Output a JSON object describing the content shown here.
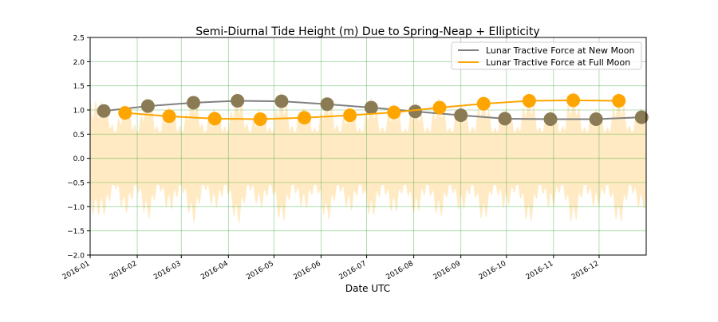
{
  "chart_data": {
    "type": "line",
    "title": "Semi-Diurnal Tide Height (m) Due to Spring-Neap + Ellipticity",
    "xlabel": "Date UTC",
    "ylabel": "",
    "ylim": [
      -2.0,
      2.5
    ],
    "xlim": [
      "2016-01-01",
      "2016-12-31"
    ],
    "grid": true,
    "grid_color": "#2ca02c",
    "legend_position": "top-right",
    "y_ticks": [
      "−2.0",
      "−1.5",
      "−1.0",
      "−0.5",
      "0.0",
      "0.5",
      "1.0",
      "1.5",
      "2.0",
      "2.5"
    ],
    "y_tick_values": [
      -2.0,
      -1.5,
      -1.0,
      -0.5,
      0.0,
      0.5,
      1.0,
      1.5,
      2.0,
      2.5
    ],
    "x_ticks": [
      "2016-01",
      "2016-02",
      "2016-03",
      "2016-04",
      "2016-05",
      "2016-06",
      "2016-07",
      "2016-08",
      "2016-09",
      "2016-10",
      "2016-11",
      "2016-12"
    ],
    "tide_fill_color": "#ffd27f",
    "series": [
      {
        "name": "Lunar Tractive Force at New Moon",
        "color": "#808080",
        "marker_color": "#8b7b55",
        "x": [
          "2016-01-10",
          "2016-02-08",
          "2016-03-09",
          "2016-04-07",
          "2016-05-06",
          "2016-06-05",
          "2016-07-04",
          "2016-08-02",
          "2016-09-01",
          "2016-09-30",
          "2016-10-30",
          "2016-11-29",
          "2016-12-29"
        ],
        "y": [
          0.98,
          1.08,
          1.15,
          1.19,
          1.18,
          1.12,
          1.05,
          0.97,
          0.89,
          0.82,
          0.81,
          0.81,
          0.85
        ]
      },
      {
        "name": "Lunar Tractive Force at Full Moon",
        "color": "#ffa500",
        "marker_color": "#ffa500",
        "x": [
          "2016-01-24",
          "2016-02-22",
          "2016-03-23",
          "2016-04-22",
          "2016-05-21",
          "2016-06-20",
          "2016-07-19",
          "2016-08-18",
          "2016-09-16",
          "2016-10-16",
          "2016-11-14",
          "2016-12-14"
        ],
        "y": [
          0.94,
          0.87,
          0.82,
          0.81,
          0.84,
          0.89,
          0.95,
          1.05,
          1.13,
          1.19,
          1.2,
          1.19
        ]
      }
    ]
  }
}
